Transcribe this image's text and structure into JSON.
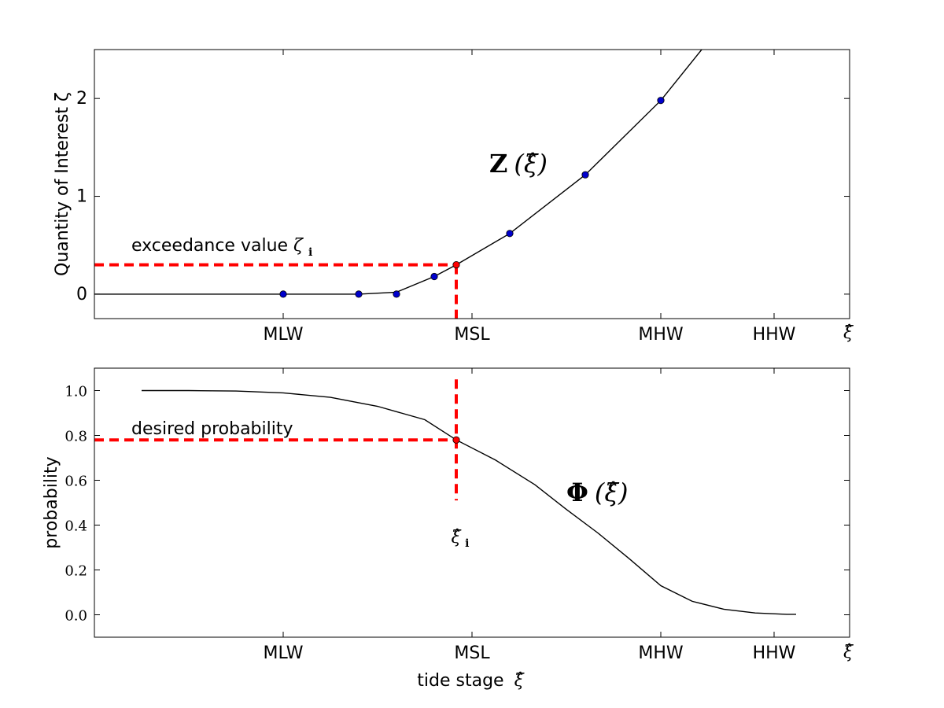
{
  "chart_data": [
    {
      "type": "line",
      "ylabel": "Quantity of Interest ζ",
      "xlabel": "",
      "x_axis_symbol": "ξ̂",
      "xticks": [
        {
          "label": "MLW",
          "value": 3
        },
        {
          "label": "MSL",
          "value": 6
        },
        {
          "label": "MHW",
          "value": 9
        },
        {
          "label": "HHW",
          "value": 10.8
        }
      ],
      "xlim": [
        0,
        12
      ],
      "yticks": [
        "0",
        "1",
        "2"
      ],
      "ylim": [
        -0.25,
        2.5
      ],
      "curve_label_bold": "Z",
      "curve_label_rest": "(ξ̂)",
      "annotation_text": "exceedance value ",
      "annotation_symbol": "ζ",
      "annotation_subscript": "i",
      "series": [
        {
          "style": "line",
          "color": "#000000",
          "x": [
            0,
            3,
            4.2,
            4.8,
            5.4,
            5.75,
            6.6,
            7.8,
            9.0,
            9.65
          ],
          "y": [
            0,
            0,
            0,
            0.02,
            0.18,
            0.3,
            0.62,
            1.22,
            1.98,
            2.5
          ]
        },
        {
          "style": "markers",
          "color": "#0000cc",
          "x": [
            3,
            4.2,
            4.8,
            5.4,
            6.6,
            7.8,
            9.0
          ],
          "y": [
            0,
            0,
            0,
            0.18,
            0.62,
            1.22,
            1.98
          ]
        }
      ],
      "threshold": {
        "x": 5.75,
        "y": 0.3,
        "color": "#ff0000"
      }
    },
    {
      "type": "line",
      "ylabel": "probability",
      "xlabel": "tide stage",
      "xlabel_symbol": "ξ̂",
      "x_axis_symbol": "ξ̂",
      "xticks": [
        {
          "label": "MLW",
          "value": 3
        },
        {
          "label": "MSL",
          "value": 6
        },
        {
          "label": "MHW",
          "value": 9
        },
        {
          "label": "HHW",
          "value": 10.8
        }
      ],
      "xlim": [
        0,
        12
      ],
      "yticks": [
        "0.0",
        "0.2",
        "0.4",
        "0.6",
        "0.8",
        "1.0"
      ],
      "ylim": [
        -0.1,
        1.1
      ],
      "curve_label_bold": "Φ",
      "curve_label_rest": "(ξ̂)",
      "annotation_text": "desired probability",
      "point_symbol": "ξ̂",
      "point_subscript": "i",
      "series": [
        {
          "style": "line",
          "color": "#000000",
          "x": [
            0.75,
            1.5,
            2.25,
            3.0,
            3.75,
            4.5,
            5.25,
            5.75,
            6.375,
            7.0,
            7.5,
            8.0,
            8.5,
            9.0,
            9.5,
            10.0,
            10.5,
            11.0,
            11.15
          ],
          "y": [
            1.0,
            1.0,
            0.998,
            0.99,
            0.97,
            0.93,
            0.87,
            0.78,
            0.69,
            0.58,
            0.47,
            0.365,
            0.25,
            0.13,
            0.06,
            0.025,
            0.008,
            0.002,
            0.002
          ]
        }
      ],
      "threshold": {
        "x": 5.75,
        "y": 0.78,
        "color": "#ff0000"
      }
    }
  ]
}
